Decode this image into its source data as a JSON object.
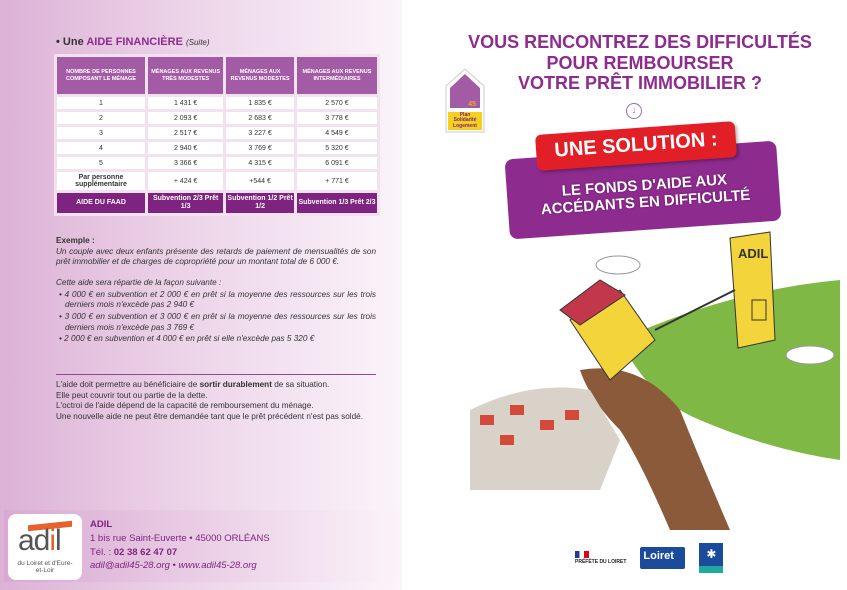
{
  "section": {
    "bullet": "•",
    "prefix": "Une",
    "title": "AIDE FINANCIÈRE",
    "suffix": "(Suite)"
  },
  "table": {
    "headers": [
      "NOMBRE DE PERSONNES COMPOSANT LE MÉNAGE",
      "MÉNAGES AUX REVENUS TRÈS MODESTES",
      "MÉNAGES AUX REVENUS MODESTES",
      "MÉNAGES AUX REVENUS INTERMÉDIAIRES"
    ],
    "rows": [
      [
        "1",
        "1 431 €",
        "1 835 €",
        "2 570 €"
      ],
      [
        "2",
        "2 093 €",
        "2 683 €",
        "3 778 €"
      ],
      [
        "3",
        "2 517 €",
        "3 227 €",
        "4 549 €"
      ],
      [
        "4",
        "2 940 €",
        "3 769 €",
        "5 320 €"
      ],
      [
        "5",
        "3 366 €",
        "4 315 €",
        "6 091 €"
      ],
      [
        "Par personne supplémentaire",
        "+ 424 €",
        "+544 €",
        "+ 771 €"
      ]
    ],
    "faad": [
      "AIDE DU FAAD",
      "Subvention 2/3 Prêt 1/3",
      "Subvention 1/2 Prêt 1/2",
      "Subvention 1/3 Prêt 2/3"
    ]
  },
  "example": {
    "label": "Exemple :",
    "intro": "Un couple avec deux enfants présente des retards de paiement de mensualités de son prêt immobilier et de charges de copropriété pour un montant total de 6 000 €.",
    "lead": "Cette aide sera répartie de la façon suivante :",
    "items": [
      "• 4 000 € en subvention et 2 000 € en prêt si la moyenne des ressources sur les trois derniers mois n'excède pas 2 940 €",
      "• 3 000 € en subvention et 3 000 € en prêt si la moyenne des ressources sur les trois derniers mois n'excède pas 3 769 €",
      "• 2 000 € en subvention et 4 000 € en prêt si elle n'excède pas 5 320 €"
    ]
  },
  "notes": {
    "p1a": "L'aide doit permettre au bénéficiaire de ",
    "p1b": "sortir durablement",
    "p1c": " de sa situation.",
    "p2": "Elle peut couvrir tout ou partie de la dette.",
    "p3": "L'octroi de l'aide dépend de la capacité de remboursement du ménage.",
    "p4": "Une nouvelle aide ne peut être demandée tant que le prêt précédent n'est pas soldé."
  },
  "footer": {
    "logo_word_a": "ad",
    "logo_word_i": "i",
    "logo_word_l": "l",
    "logo_sub": "du Loiret et d'Eure-et-Loir",
    "org": "ADIL",
    "address": "1 bis rue Saint-Euverte • 45000 ORLÉANS",
    "tel_label": "Tél. : ",
    "tel": "02 38 62 47 07",
    "web": "adil@adil45-28.org • www.adil45-28.org"
  },
  "cover": {
    "headline": [
      "VOUS RENCONTREZ DES DIFFICULTÉS",
      "POUR REMBOURSER",
      "VOTRE PRÊT IMMOBILIER ?"
    ],
    "arrow": "↓",
    "solution": "UNE SOLUTION :",
    "fund": [
      "LE FONDS D'AIDE AUX",
      "ACCÉDANTS EN DIFFICULTÉ"
    ],
    "badge": {
      "number": "45",
      "text": "Plan Solidarité Logement"
    },
    "illustration_sign": "ADIL",
    "partners": {
      "prefecture": "PRÉFÈTE DU LOIRET",
      "loiret": "Loiret",
      "caf": "caf"
    }
  },
  "colors": {
    "accent": "#8e2b8f",
    "red": "#e21f26",
    "table_header": "#a45ba6",
    "faad": "#7e237f",
    "adil_orange": "#e8612c"
  }
}
